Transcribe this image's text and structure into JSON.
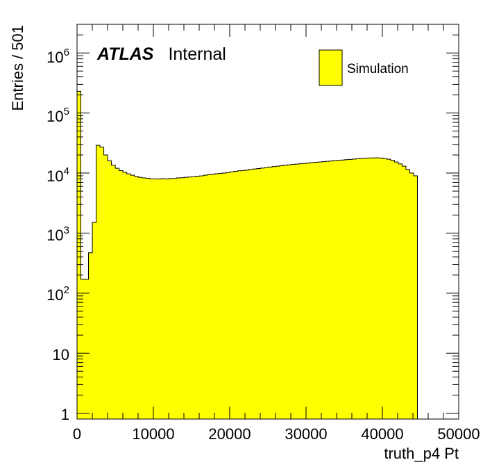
{
  "chart_data": {
    "type": "bar",
    "style": "step-histogram",
    "fill_color": "#ffff00",
    "line_color": "#000000",
    "xlabel": "truth_p4 Pt",
    "ylabel": "Entries / 501",
    "x_range": [
      0,
      50000
    ],
    "y_range": [
      0.8,
      3000000
    ],
    "y_scale": "log",
    "grid": false,
    "x_ticks": [
      "0",
      "10000",
      "20000",
      "30000",
      "40000",
      "50000"
    ],
    "y_ticks": [
      {
        "base": "1",
        "exp": ""
      },
      {
        "base": "10",
        "exp": ""
      },
      {
        "base": "10",
        "exp": "2"
      },
      {
        "base": "10",
        "exp": "3"
      },
      {
        "base": "10",
        "exp": "4"
      },
      {
        "base": "10",
        "exp": "5"
      },
      {
        "base": "10",
        "exp": "6"
      }
    ],
    "annotation": {
      "bold": "ATLAS",
      "text": "Internal"
    },
    "legend": {
      "position": "top-right",
      "entries": [
        "Simulation"
      ]
    },
    "bin_width": 501,
    "x_start": 0,
    "values": [
      230000,
      170,
      170,
      470,
      1500,
      29000,
      27000,
      20000,
      16000,
      13500,
      12000,
      11000,
      10300,
      9700,
      9200,
      8800,
      8500,
      8300,
      8200,
      8000,
      8000,
      7950,
      8050,
      7950,
      8100,
      8150,
      8300,
      8350,
      8500,
      8600,
      8650,
      8850,
      8950,
      9200,
      9400,
      9500,
      9750,
      9850,
      10000,
      10250,
      10450,
      10700,
      10900,
      11050,
      11200,
      11500,
      11700,
      11900,
      12100,
      12400,
      12600,
      12800,
      13000,
      13300,
      13500,
      13700,
      13900,
      14100,
      14300,
      14500,
      14700,
      14900,
      15100,
      15300,
      15500,
      15700,
      15900,
      16100,
      16300,
      16500,
      16700,
      16900,
      17100,
      17300,
      17500,
      17700,
      17800,
      17850,
      17900,
      17800,
      17400,
      17000,
      16300,
      15300,
      14200,
      13000,
      11500,
      10000,
      9000
    ]
  }
}
